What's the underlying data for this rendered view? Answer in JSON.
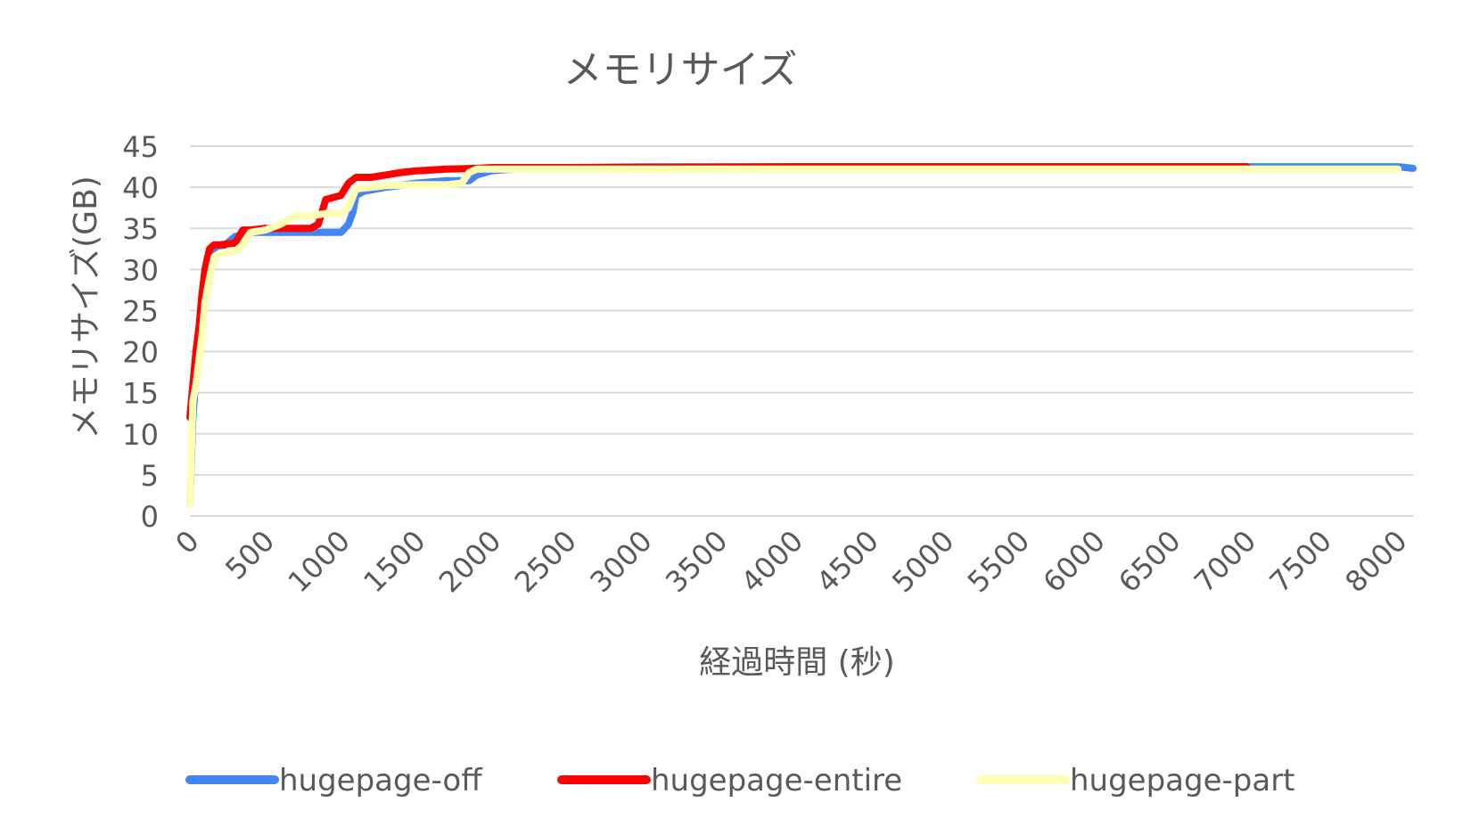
{
  "chart_data": {
    "type": "line",
    "title": "メモリサイズ",
    "xlabel": "経過時間 (秒)",
    "ylabel": "メモリサイズ(GB)",
    "xlim": [
      0,
      8100
    ],
    "ylim": [
      0,
      45
    ],
    "x_ticks": [
      0,
      500,
      1000,
      1500,
      2000,
      2500,
      3000,
      3500,
      4000,
      4500,
      5000,
      5500,
      6000,
      6500,
      7000,
      7500,
      8000
    ],
    "y_ticks": [
      0,
      5,
      10,
      15,
      20,
      25,
      30,
      35,
      40,
      45
    ],
    "grid": true,
    "legend_position": "bottom",
    "series": [
      {
        "name": "hugepage-off",
        "color": "#4285F4",
        "x": [
          0,
          20,
          40,
          60,
          80,
          100,
          130,
          160,
          200,
          300,
          400,
          500,
          700,
          900,
          1000,
          1050,
          1080,
          1100,
          1150,
          1300,
          1500,
          1700,
          1850,
          1900,
          2000,
          2200,
          2500,
          3000,
          4000,
          5000,
          6000,
          7000,
          8000,
          8100
        ],
        "values": [
          1.5,
          12,
          17,
          20,
          24,
          28,
          31,
          32,
          32.5,
          34,
          34.5,
          34.5,
          34.5,
          34.5,
          34.5,
          35.5,
          37,
          39,
          39.5,
          40,
          40.5,
          40.8,
          40.8,
          41.5,
          42,
          42.3,
          42.4,
          42.5,
          42.5,
          42.5,
          42.5,
          42.5,
          42.5,
          42.3
        ]
      },
      {
        "name": "hugepage-entire",
        "color": "#FF0000",
        "x": [
          0,
          20,
          40,
          60,
          80,
          100,
          130,
          160,
          200,
          300,
          350,
          400,
          500,
          600,
          700,
          800,
          850,
          900,
          1000,
          1050,
          1100,
          1200,
          1300,
          1400,
          1500,
          1700,
          1900,
          2000,
          2200,
          2500,
          3000,
          4000,
          5000,
          6000,
          7000
        ],
        "values": [
          12,
          16,
          20,
          23,
          27,
          30,
          32.5,
          33,
          33,
          33.2,
          34.8,
          34.8,
          35,
          35,
          35,
          35,
          35.5,
          38.5,
          39,
          40.5,
          41.2,
          41.2,
          41.5,
          41.8,
          42,
          42.2,
          42.3,
          42.4,
          42.4,
          42.4,
          42.4,
          42.5,
          42.5,
          42.5,
          42.5
        ]
      },
      {
        "name": "hugepage-part",
        "color": "#FFFFB4",
        "x": [
          0,
          20,
          40,
          60,
          80,
          100,
          130,
          160,
          200,
          300,
          350,
          400,
          500,
          600,
          700,
          800,
          900,
          1000,
          1050,
          1100,
          1200,
          1300,
          1500,
          1700,
          1800,
          1850,
          1900,
          2000,
          2500,
          3000,
          3500,
          4000,
          5000,
          6000,
          7000,
          8000
        ],
        "values": [
          1.5,
          14,
          16,
          19,
          22,
          26,
          29,
          31.5,
          32,
          32.2,
          33,
          34.5,
          34.8,
          35.5,
          36.5,
          36.5,
          36.8,
          36.8,
          37.5,
          39.8,
          40,
          40.2,
          40.3,
          40.3,
          40.5,
          41.8,
          42.2,
          42.2,
          42.2,
          42.2,
          42.2,
          42.2,
          42.2,
          42.2,
          42.2,
          42.2
        ]
      }
    ]
  }
}
